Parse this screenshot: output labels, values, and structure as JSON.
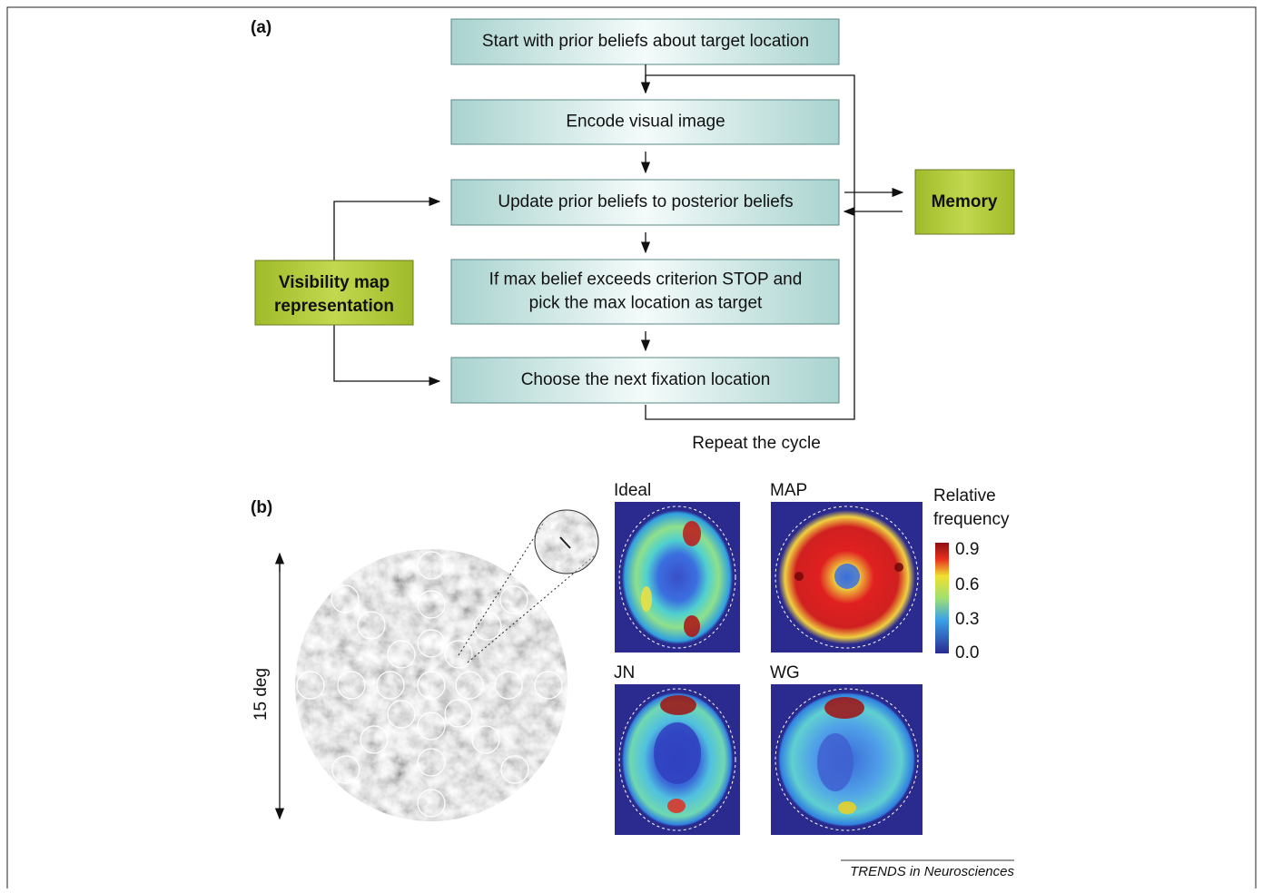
{
  "panel_a": {
    "label": "(a)",
    "steps": [
      [
        "Start with prior beliefs about target location"
      ],
      [
        "Encode visual image"
      ],
      [
        "Update prior beliefs to posterior beliefs"
      ],
      [
        "If max belief exceeds criterion STOP and",
        "pick the max location as target"
      ],
      [
        "Choose the next fixation location"
      ]
    ],
    "memory": "Memory",
    "visibility": [
      "Visibility map",
      "representation"
    ],
    "repeat": "Repeat the cycle"
  },
  "panel_b": {
    "label": "(b)",
    "scale": "15 deg",
    "maps": [
      "Ideal",
      "MAP",
      "JN",
      "WG"
    ],
    "colorbar": {
      "title": [
        "Relative",
        "frequency"
      ],
      "ticks": [
        "0.9",
        "0.6",
        "0.3",
        "0.0"
      ]
    }
  },
  "footer": "TRENDS in Neurosciences"
}
